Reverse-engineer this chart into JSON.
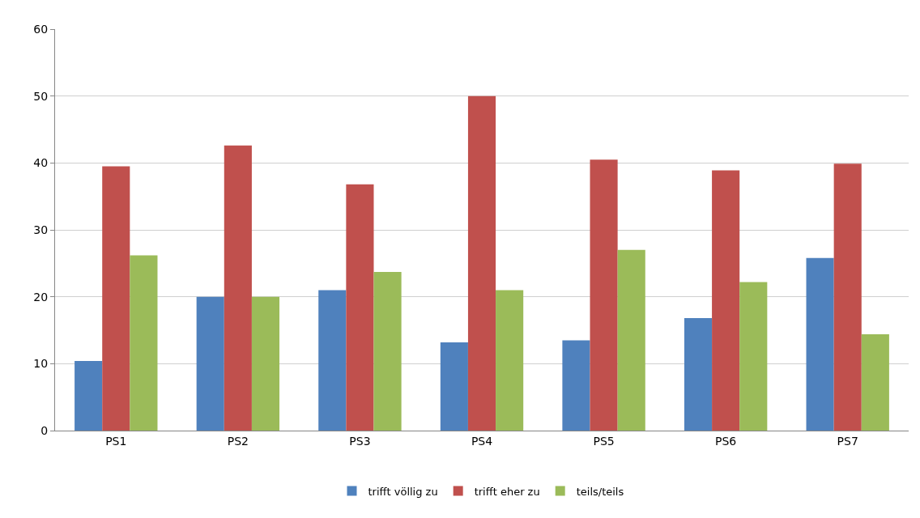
{
  "chart_data": {
    "type": "bar",
    "categories": [
      "PS1",
      "PS2",
      "PS3",
      "PS4",
      "PS5",
      "PS6",
      "PS7"
    ],
    "series": [
      {
        "name": "trifft völlig zu",
        "color": "#4f81bd",
        "values": [
          10.4,
          20.0,
          21.0,
          13.2,
          13.5,
          16.8,
          25.8
        ]
      },
      {
        "name": "trifft eher zu",
        "color": "#c0504d",
        "values": [
          39.5,
          42.6,
          36.8,
          50.0,
          40.5,
          38.9,
          39.9
        ]
      },
      {
        "name": "teils/teils",
        "color": "#9bbb59",
        "values": [
          26.2,
          20.0,
          23.7,
          21.0,
          27.0,
          22.2,
          14.4
        ]
      }
    ],
    "ylim": [
      0,
      60
    ],
    "yticks": [
      0,
      10,
      20,
      30,
      40,
      50,
      60
    ],
    "grid": "y",
    "legend": "bottom"
  }
}
